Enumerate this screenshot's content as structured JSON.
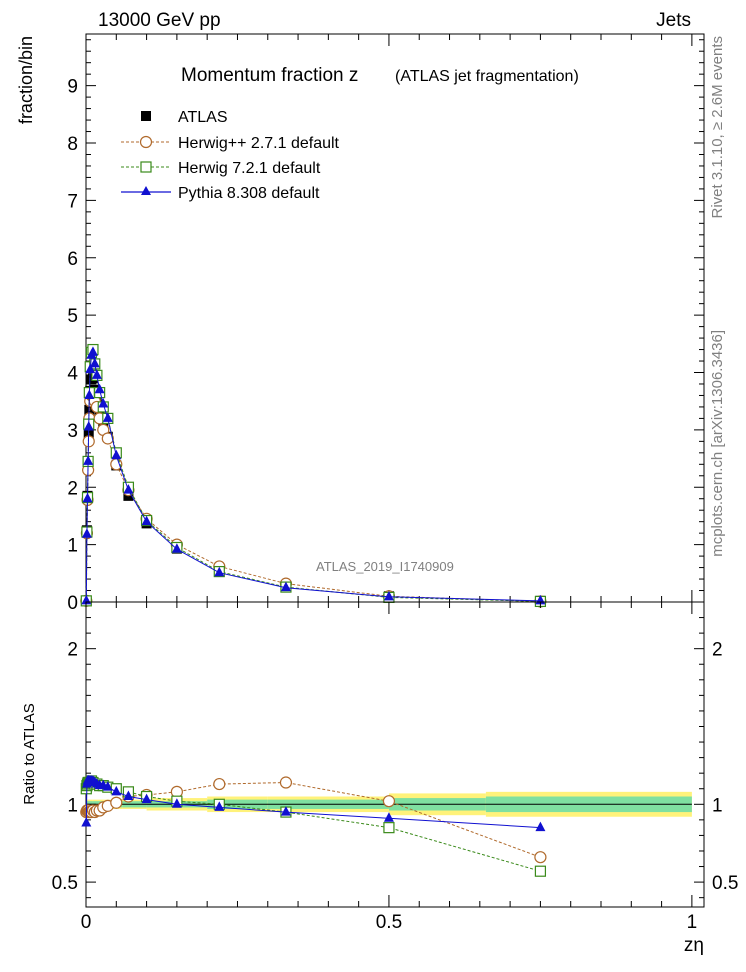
{
  "header": {
    "left": "13000 GeV pp",
    "right": "Jets",
    "side_top": "Rivet 3.1.10, ≥ 2.6M events",
    "side_bottom": "mcplots.cern.ch [arXiv:1306.3436]"
  },
  "chart_data": {
    "type": "line",
    "title": "Momentum fraction z",
    "subtitle": "(ATLAS jet fragmentation)",
    "watermark": "ATLAS_2019_I1740909",
    "xlabel": "zη",
    "ylabel": "fraction/bin",
    "ratio_ylabel": "Ratio to ATLAS",
    "xlim": [
      0,
      1.02
    ],
    "ylim": [
      0,
      9.9
    ],
    "ratio_ylim": [
      0.34,
      2.3
    ],
    "x_ticks": [
      0,
      0.5,
      1
    ],
    "x_tick_labels": [
      "0",
      "0.5",
      "1"
    ],
    "y_ticks": [
      0,
      1,
      2,
      3,
      4,
      5,
      6,
      7,
      8,
      9
    ],
    "y_tick_labels": [
      "0",
      "1",
      "2",
      "3",
      "4",
      "5",
      "6",
      "7",
      "8",
      "9"
    ],
    "ratio_ticks": [
      0.5,
      1,
      2
    ],
    "ratio_tick_labels": [
      "0.5",
      "1",
      "2"
    ],
    "legend_position": "top-left",
    "x": [
      0.0005,
      0.0015,
      0.0025,
      0.0035,
      0.0045,
      0.0055,
      0.007,
      0.009,
      0.0115,
      0.0145,
      0.018,
      0.0225,
      0.0285,
      0.036,
      0.05,
      0.07,
      0.1,
      0.15,
      0.22,
      0.33,
      0.5,
      0.75
    ],
    "x_display": [
      0.0005,
      0.0015,
      0.0025,
      0.0035,
      0.0045,
      0.0055,
      0.007,
      0.009,
      0.0115,
      0.0145,
      0.018,
      0.0225,
      0.0285,
      0.036,
      0.05,
      0.07,
      0.1,
      0.15,
      0.22,
      0.33,
      0.5,
      0.75
    ],
    "series": [
      {
        "name": "ATLAS",
        "color": "#000000",
        "marker": "square-filled",
        "values": [
          0.02,
          1.25,
          1.85,
          2.38,
          2.92,
          3.35,
          3.68,
          3.88,
          3.9,
          3.7,
          3.55,
          3.32,
          3.08,
          2.88,
          2.38,
          1.85,
          1.37,
          0.93,
          0.53,
          0.27,
          0.1,
          0.02
        ],
        "ratio": [
          1,
          1,
          1,
          1,
          1,
          1,
          1,
          1,
          1,
          1,
          1,
          1,
          1,
          1,
          1,
          1,
          1,
          1,
          1,
          1,
          1,
          1
        ]
      },
      {
        "name": "Herwig++ 2.7.1 default",
        "color": "#b06a2c",
        "marker": "circle-open",
        "dashed": true,
        "values": [
          0.02,
          1.2,
          1.78,
          2.3,
          2.8,
          3.2,
          3.5,
          3.6,
          3.6,
          3.5,
          3.4,
          3.2,
          3.0,
          2.85,
          2.4,
          1.95,
          1.45,
          1.0,
          0.62,
          0.32,
          0.1,
          0.01
        ],
        "ratio": [
          0.95,
          0.96,
          0.96,
          0.96,
          0.95,
          0.95,
          0.95,
          0.95,
          0.96,
          0.95,
          0.96,
          0.96,
          0.98,
          0.99,
          1.01,
          1.05,
          1.06,
          1.08,
          1.13,
          1.14,
          1.02,
          0.66
        ]
      },
      {
        "name": "Herwig 7.2.1 default",
        "color": "#3a8a1a",
        "marker": "square-open",
        "dashed": true,
        "values": [
          0.02,
          1.22,
          1.82,
          2.45,
          3.1,
          3.65,
          4.1,
          4.35,
          4.4,
          4.15,
          3.95,
          3.65,
          3.4,
          3.2,
          2.6,
          2.0,
          1.42,
          0.95,
          0.53,
          0.26,
          0.08,
          0.01
        ],
        "ratio": [
          1.1,
          1.12,
          1.13,
          1.14,
          1.14,
          1.14,
          1.14,
          1.15,
          1.14,
          1.13,
          1.13,
          1.12,
          1.12,
          1.11,
          1.1,
          1.08,
          1.05,
          1.02,
          1.0,
          0.95,
          0.85,
          0.57
        ]
      },
      {
        "name": "Pythia 8.308 default",
        "color": "#1010d0",
        "marker": "triangle-filled",
        "dashed": false,
        "values": [
          0.02,
          1.18,
          1.8,
          2.45,
          3.05,
          3.6,
          4.05,
          4.3,
          4.35,
          4.15,
          3.95,
          3.7,
          3.45,
          3.2,
          2.55,
          1.95,
          1.4,
          0.92,
          0.51,
          0.25,
          0.09,
          0.02
        ],
        "ratio": [
          0.88,
          1.13,
          1.15,
          1.15,
          1.15,
          1.15,
          1.15,
          1.15,
          1.15,
          1.14,
          1.13,
          1.12,
          1.12,
          1.11,
          1.08,
          1.05,
          1.03,
          1.0,
          0.98,
          0.95,
          0.91,
          0.85
        ]
      }
    ],
    "uncertainty_bands": {
      "x_edges": [
        0,
        0.01,
        0.03,
        0.06,
        0.1,
        0.2,
        0.3,
        0.5,
        0.66,
        1.0
      ],
      "inner": [
        0.02,
        0.02,
        0.02,
        0.02,
        0.02,
        0.03,
        0.03,
        0.04,
        0.05
      ],
      "outer": [
        0.03,
        0.03,
        0.03,
        0.03,
        0.04,
        0.05,
        0.05,
        0.07,
        0.08
      ],
      "inner_color": "#7fe0a0",
      "outer_color": "#fff27a"
    }
  }
}
